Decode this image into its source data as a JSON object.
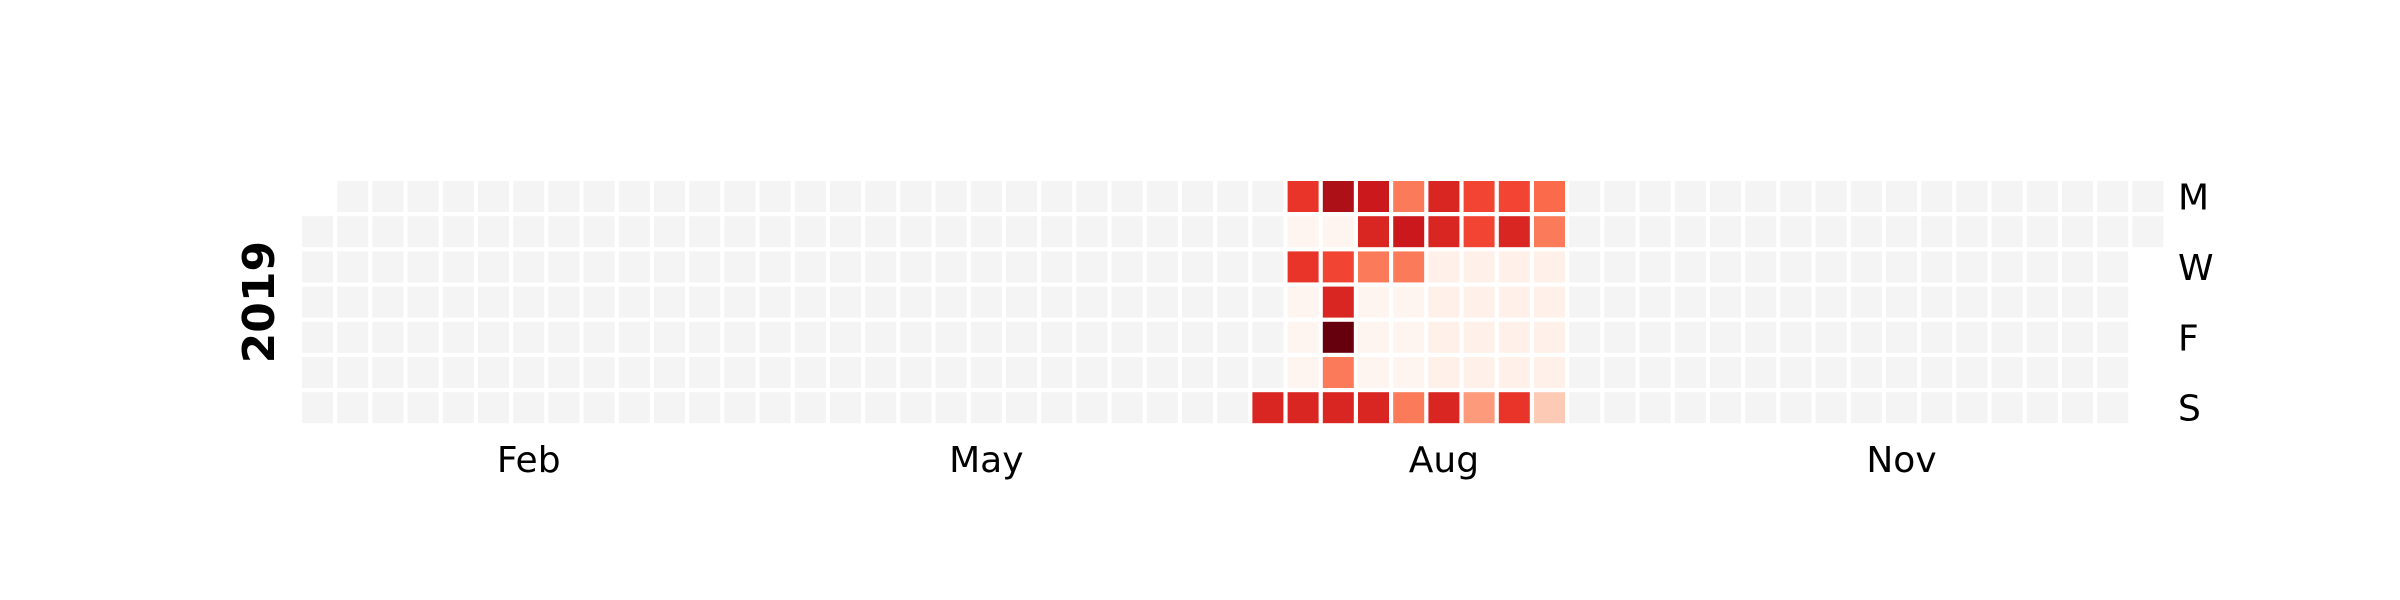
{
  "chart_data": {
    "type": "heatmap",
    "title": "",
    "year": "2019",
    "start_date": "2019-01-01",
    "end_date": "2019-12-31",
    "month_ticks": [
      {
        "label": "Feb",
        "month": 2
      },
      {
        "label": "May",
        "month": 5
      },
      {
        "label": "Aug",
        "month": 8
      },
      {
        "label": "Nov",
        "month": 11
      }
    ],
    "day_ticks": [
      {
        "label": "M",
        "weekday": 0
      },
      {
        "label": "W",
        "weekday": 2
      },
      {
        "label": "F",
        "weekday": 4
      },
      {
        "label": "S",
        "weekday": 6
      }
    ],
    "colormap": "Reds",
    "empty_color": "#f4f4f4",
    "zero_color": "#fff5f0",
    "value_range": [
      0,
      10
    ],
    "active_range": [
      "2019-07-14",
      "2019-09-08"
    ],
    "values": {
      "2019-07-14": 7.0,
      "2019-07-15": 6.5,
      "2019-07-16": 0,
      "2019-07-17": 6.5,
      "2019-07-18": 0,
      "2019-07-19": 0,
      "2019-07-20": 0,
      "2019-07-21": 7.0,
      "2019-07-22": 8.5,
      "2019-07-23": 0,
      "2019-07-24": 6.0,
      "2019-07-25": 7.0,
      "2019-07-26": 10.0,
      "2019-07-27": 4.5,
      "2019-07-28": 7.0,
      "2019-07-29": 7.5,
      "2019-07-30": 7.0,
      "2019-07-31": 4.5,
      "2019-08-01": 0,
      "2019-08-02": 0,
      "2019-08-03": 0,
      "2019-08-04": 7.0,
      "2019-08-05": 4.5,
      "2019-08-06": 7.5,
      "2019-08-07": 4.5,
      "2019-08-08": 0,
      "2019-08-09": 0,
      "2019-08-10": 0,
      "2019-08-11": 4.5,
      "2019-08-12": 7.0,
      "2019-08-13": 7.0,
      "2019-08-14": 0.3,
      "2019-08-15": 0.3,
      "2019-08-16": 0.3,
      "2019-08-17": 0.3,
      "2019-08-18": 7.0,
      "2019-08-19": 6.0,
      "2019-08-20": 6.0,
      "2019-08-21": 0.3,
      "2019-08-22": 0.3,
      "2019-08-23": 0.3,
      "2019-08-24": 0.3,
      "2019-08-25": 3.5,
      "2019-08-26": 6.0,
      "2019-08-27": 7.0,
      "2019-08-28": 0.3,
      "2019-08-29": 0.3,
      "2019-08-30": 0.3,
      "2019-08-31": 0.3,
      "2019-09-01": 6.5,
      "2019-09-02": 5.0,
      "2019-09-03": 4.5,
      "2019-09-04": 0.3,
      "2019-09-05": 0.3,
      "2019-09-06": 0.3,
      "2019-09-07": 0.3,
      "2019-09-08": 2.0
    }
  }
}
